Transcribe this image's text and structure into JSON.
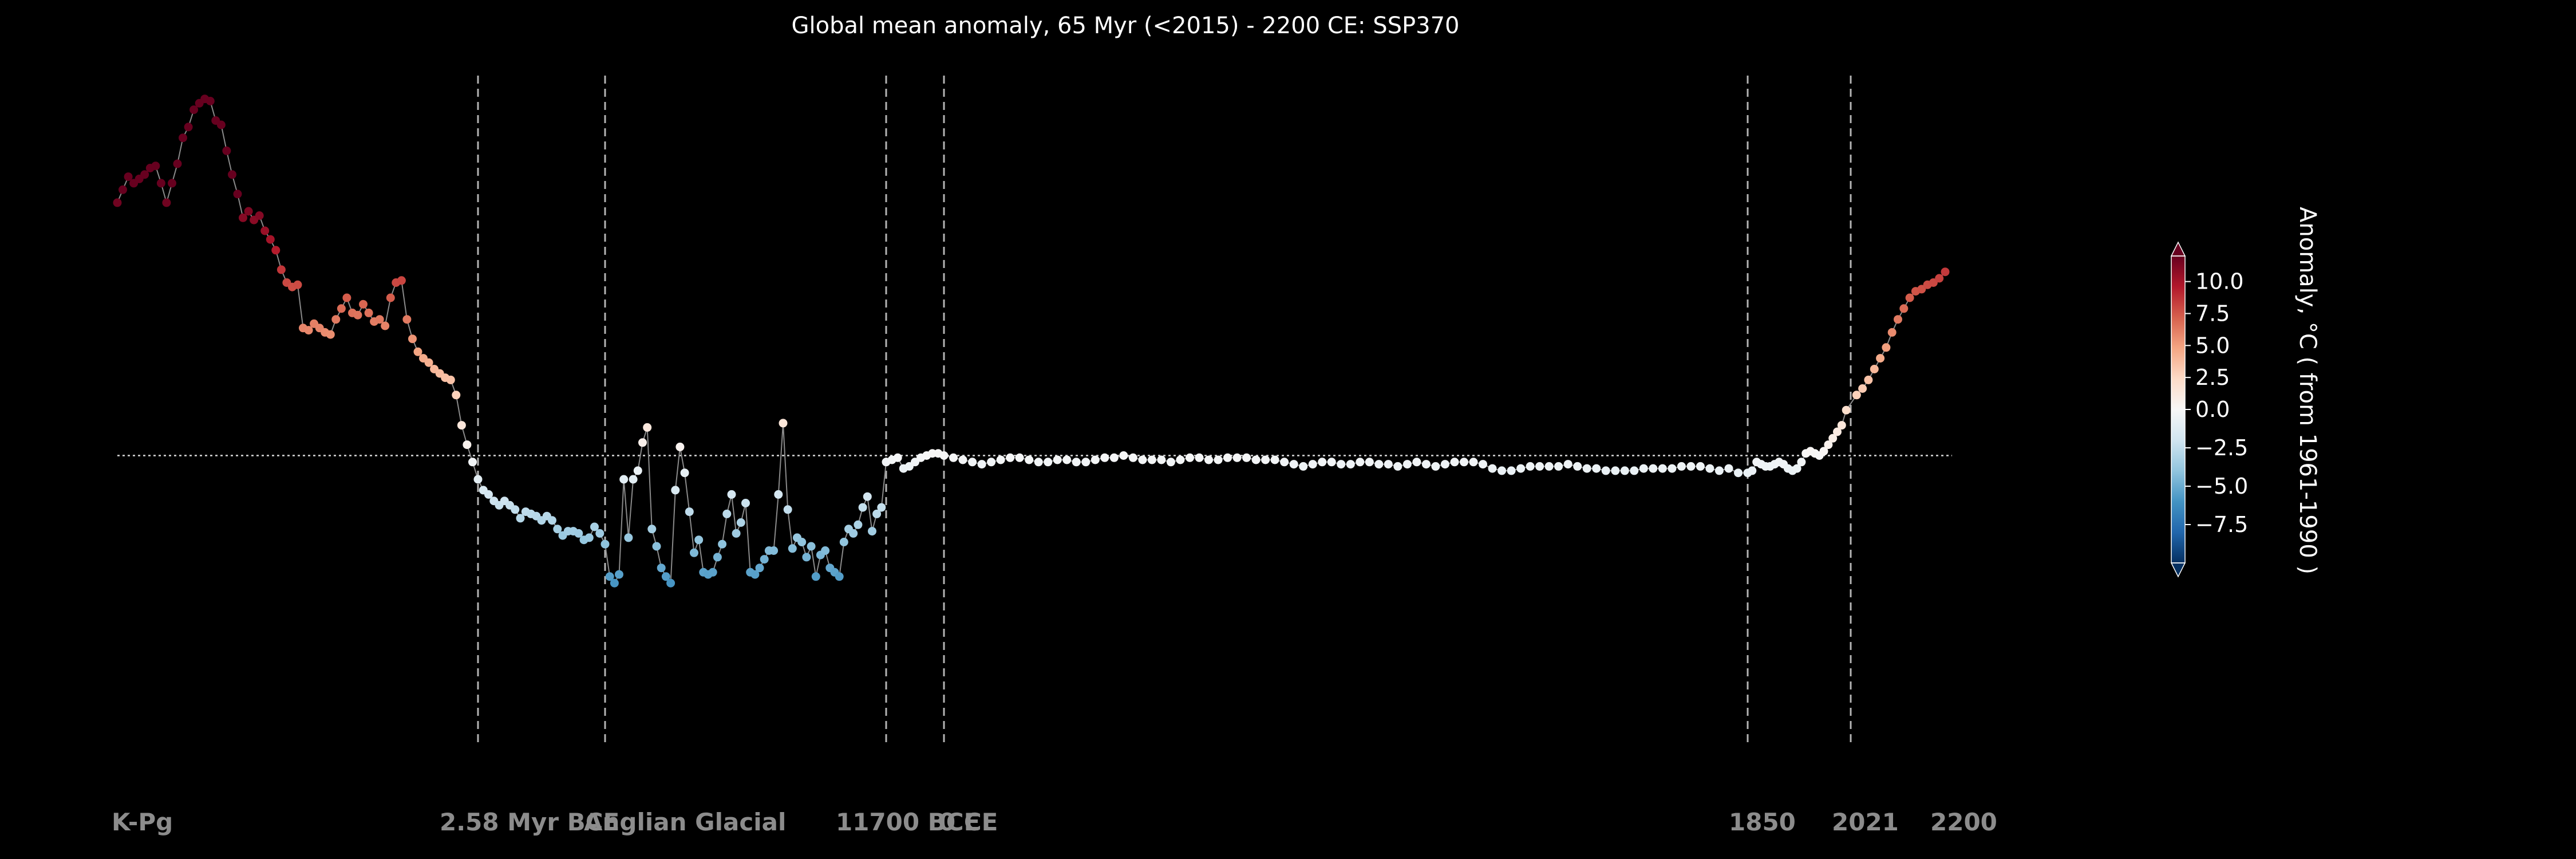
{
  "chart_data": {
    "type": "scatter",
    "title": "Global mean anomaly, 65 Myr (<2015) - 2200 CE: SSP370",
    "xlabel": "",
    "ylabel": "",
    "x_scale": "segmented (piecewise time axis, equal-width segments per era)",
    "reference_line": {
      "y": 0,
      "style": "dotted"
    },
    "era_markers": [
      {
        "label": "K-Pg",
        "vline": false
      },
      {
        "label": "2.58 Myr BCE",
        "vline": true
      },
      {
        "label": "Anglian Glacial",
        "vline": true
      },
      {
        "label": "11700 BCE",
        "vline": true
      },
      {
        "label": "0 CE",
        "vline": true
      },
      {
        "label": "1850",
        "vline": true
      },
      {
        "label": "2021",
        "vline": true
      },
      {
        "label": "2200",
        "vline": false
      }
    ],
    "colorbar": {
      "label": "Anomaly, °C ( from 1961-1990 )",
      "ticks": [
        "10.0",
        "7.5",
        "5.0",
        "2.5",
        "0.0",
        "−2.5",
        "−5.0",
        "−7.5"
      ],
      "tick_values": [
        10,
        7.5,
        5,
        2.5,
        0,
        -2.5,
        -5,
        -7.5
      ],
      "range": [
        -10,
        12
      ],
      "colormap": "RdBu_r",
      "extend": "both"
    },
    "ylim": [
      -13.5,
      17.5
    ],
    "series": [
      {
        "segment": "K-Pg to 2.58 Myr BCE",
        "y": [
          11.7,
          12.3,
          12.9,
          12.6,
          12.8,
          13.0,
          13.3,
          13.4,
          12.6,
          11.7,
          12.6,
          13.5,
          14.7,
          15.2,
          16.0,
          16.3,
          16.5,
          16.4,
          15.5,
          15.3,
          14.1,
          13.0,
          12.1,
          11.0,
          11.3,
          10.9,
          11.1,
          10.4,
          10.0,
          9.5,
          8.6,
          8.0,
          7.8,
          7.9,
          5.9,
          5.8,
          6.1,
          5.9,
          5.7,
          5.6,
          6.3,
          6.8,
          7.3,
          6.6,
          6.5,
          7.0,
          6.6,
          6.2,
          6.3,
          6.0,
          7.3,
          8.0,
          8.1,
          6.3,
          5.4,
          4.8,
          4.5,
          4.3,
          4.0,
          3.8,
          3.6,
          3.5,
          2.8,
          1.4,
          0.5,
          -0.3
        ]
      },
      {
        "segment": "2.58 Myr BCE to Anglian Glacial",
        "y": [
          -1.1,
          -1.6,
          -1.8,
          -2.1,
          -2.3,
          -2.1,
          -2.3,
          -2.5,
          -2.9,
          -2.6,
          -2.7,
          -2.8,
          -3.0,
          -2.8,
          -3.0,
          -3.4,
          -3.7,
          -3.5,
          -3.5,
          -3.6,
          -3.9,
          -3.8,
          -3.3,
          -3.6
        ]
      },
      {
        "segment": "Anglian Glacial to 11700 BCE",
        "y": [
          -4.1,
          -5.6,
          -5.9,
          -5.5,
          -1.1,
          -3.8,
          -1.1,
          -0.7,
          0.6,
          1.3,
          -3.4,
          -4.2,
          -5.2,
          -5.6,
          -5.9,
          -1.6,
          0.4,
          -0.8,
          -2.6,
          -4.5,
          -3.9,
          -5.4,
          -5.5,
          -5.4,
          -4.7,
          -4.1,
          -2.7,
          -1.8,
          -3.6,
          -3.1,
          -2.2,
          -5.4,
          -5.5,
          -5.2,
          -4.8,
          -4.4,
          -4.4,
          -1.8,
          1.5,
          -2.5,
          -4.3,
          -3.8,
          -4.0,
          -4.7,
          -4.2,
          -5.6,
          -4.6,
          -4.4,
          -5.2,
          -5.4,
          -5.6,
          -4.0,
          -3.4,
          -3.6,
          -3.2,
          -2.4,
          -1.9,
          -3.5,
          -2.7,
          -2.4
        ]
      },
      {
        "segment": "11700 BCE to 0 CE",
        "y": [
          -0.3,
          -0.2,
          -0.1,
          -0.6,
          -0.5,
          -0.3,
          -0.1,
          0.0,
          0.1,
          0.1
        ]
      },
      {
        "segment": "0 CE to 1850",
        "y": [
          0.0,
          -0.1,
          -0.2,
          -0.3,
          -0.4,
          -0.3,
          -0.2,
          -0.1,
          -0.1,
          -0.2,
          -0.3,
          -0.3,
          -0.2,
          -0.2,
          -0.3,
          -0.3,
          -0.2,
          -0.1,
          -0.1,
          0.0,
          -0.1,
          -0.2,
          -0.2,
          -0.2,
          -0.3,
          -0.2,
          -0.1,
          -0.1,
          -0.2,
          -0.2,
          -0.1,
          -0.1,
          -0.1,
          -0.2,
          -0.2,
          -0.2,
          -0.3,
          -0.4,
          -0.5,
          -0.4,
          -0.3,
          -0.3,
          -0.4,
          -0.4,
          -0.3,
          -0.3,
          -0.4,
          -0.4,
          -0.5,
          -0.4,
          -0.3,
          -0.4,
          -0.5,
          -0.4,
          -0.3,
          -0.3,
          -0.3,
          -0.4,
          -0.6,
          -0.7,
          -0.7,
          -0.6,
          -0.5,
          -0.5,
          -0.5,
          -0.5,
          -0.4,
          -0.5,
          -0.6,
          -0.6,
          -0.7,
          -0.7,
          -0.7,
          -0.7,
          -0.6,
          -0.6,
          -0.6,
          -0.6,
          -0.5,
          -0.5,
          -0.5,
          -0.6,
          -0.7,
          -0.6,
          -0.8
        ]
      },
      {
        "segment": "1850 to 2021",
        "y": [
          -0.8,
          -0.7,
          -0.3,
          -0.4,
          -0.5,
          -0.5,
          -0.4,
          -0.3,
          -0.4,
          -0.6,
          -0.7,
          -0.6,
          -0.3,
          0.1,
          0.2,
          0.1,
          0.0,
          0.2,
          0.5,
          0.8,
          1.1,
          1.4,
          2.1
        ]
      },
      {
        "segment": "2021 to 2200",
        "y": [
          2.8,
          3.1,
          3.5,
          4.0,
          4.5,
          5.0,
          5.7,
          6.3,
          6.8,
          7.3,
          7.6,
          7.7,
          7.9,
          8.0,
          8.2,
          8.5
        ]
      }
    ]
  }
}
